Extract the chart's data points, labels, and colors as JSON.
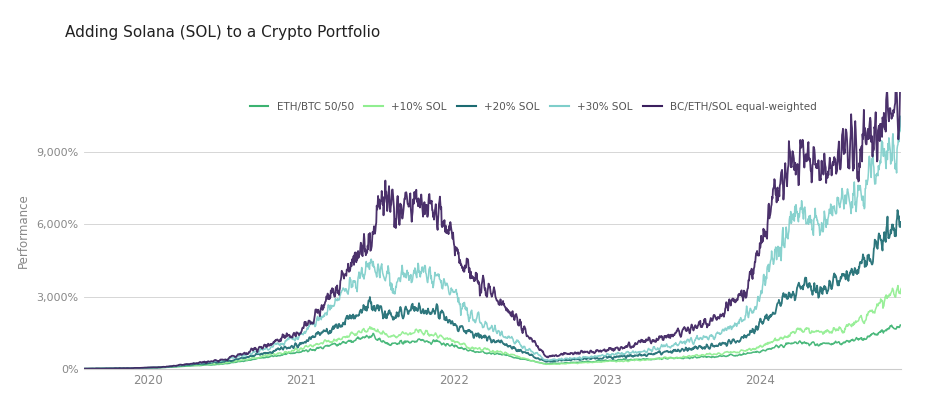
{
  "title": "Adding Solana (SOL) to a Crypto Portfolio",
  "ylabel": "Performance",
  "yticks": [
    0,
    3000,
    6000,
    9000
  ],
  "ytick_labels": [
    "0%",
    "3,000%",
    "6,000%",
    "9,000%"
  ],
  "ymax": 11500,
  "background_color": "#ffffff",
  "grid_color": "#d0d0d0",
  "series": [
    {
      "label": "ETH/BTC 50/50",
      "color": "#3cb371",
      "lw": 1.1
    },
    {
      "label": "+10% SOL",
      "color": "#90ee90",
      "lw": 1.1
    },
    {
      "label": "+20% SOL",
      "color": "#1c6b72",
      "lw": 1.3
    },
    {
      "label": "+30% SOL",
      "color": "#7ececa",
      "lw": 1.1
    },
    {
      "label": "BC/ETH/SOL equal-weighted",
      "color": "#3b1f5e",
      "lw": 1.3
    }
  ],
  "start_year": 2019.58,
  "end_year": 2024.92,
  "xtick_years": [
    2020,
    2021,
    2022,
    2023,
    2024
  ]
}
